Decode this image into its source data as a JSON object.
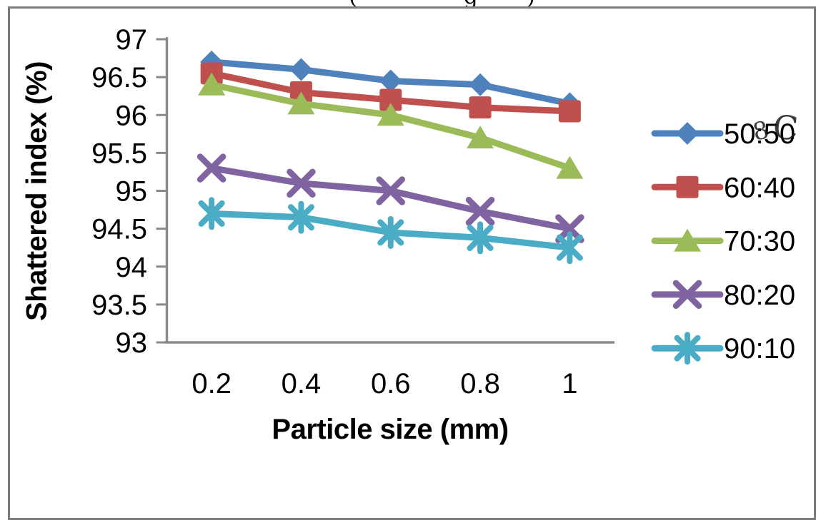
{
  "figure": {
    "top_caption_fragments": [
      "(",
      "g",
      ")"
    ],
    "stray_marks_over_legend": [
      "8",
      "C"
    ]
  },
  "chart_data": {
    "type": "line",
    "title": "",
    "xlabel": "Particle size (mm)",
    "ylabel": "Shattered index (%)",
    "categories": [
      "0.2",
      "0.4",
      "0.6",
      "0.8",
      "1"
    ],
    "x_values": [
      0.2,
      0.4,
      0.6,
      0.8,
      1
    ],
    "ylim": [
      93,
      97
    ],
    "ytick_step": 0.5,
    "ytick_labels": [
      "97",
      "96.5",
      "96",
      "95.5",
      "95",
      "94.5",
      "94",
      "93.5",
      "93"
    ],
    "grid": false,
    "legend_position": "right",
    "axis_color": "#8a8a8a",
    "series": [
      {
        "name": "50:50",
        "color": "#4F81BD",
        "marker": "diamond",
        "values": [
          96.7,
          96.6,
          96.45,
          96.4,
          96.15
        ]
      },
      {
        "name": "60:40",
        "color": "#C0504D",
        "marker": "square",
        "values": [
          96.55,
          96.3,
          96.2,
          96.1,
          96.05
        ]
      },
      {
        "name": "70:30",
        "color": "#9BBB59",
        "marker": "triangle",
        "values": [
          96.4,
          96.15,
          96.0,
          95.7,
          95.3
        ]
      },
      {
        "name": "80:20",
        "color": "#8064A2",
        "marker": "x",
        "values": [
          95.3,
          95.1,
          95.0,
          94.73,
          94.5
        ]
      },
      {
        "name": "90:10",
        "color": "#4BACC6",
        "marker": "asterisk",
        "values": [
          94.7,
          94.65,
          94.45,
          94.38,
          94.25
        ]
      }
    ]
  }
}
